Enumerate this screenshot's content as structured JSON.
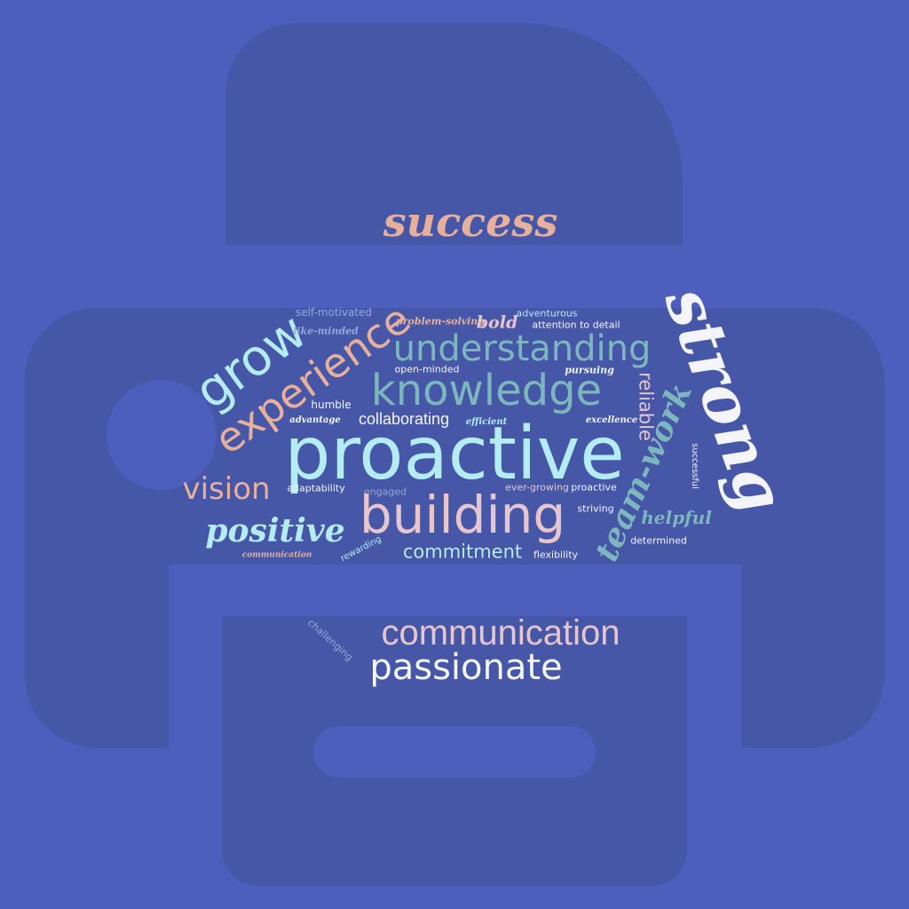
{
  "palette": {
    "background": "#4e5ebd",
    "printer": "#4657a8",
    "peach": "#e6b09c",
    "cyan": "#b3ecf3",
    "teal": "#7db7be",
    "pink": "#e6c5cd",
    "white": "#f3f5fb",
    "slate": "#94a9d6"
  },
  "icon": "printer-icon",
  "words": {
    "success": "success",
    "self_motivated": "self-motivated",
    "problem_solving": "problem-solving",
    "bold": "bold",
    "adventurous": "adventurous",
    "attention_to_detail": "attention to detail",
    "grow": "grow",
    "like_minded": "like-minded",
    "experience": "experience",
    "understanding": "understanding",
    "strong": "strong",
    "open_minded": "open-minded",
    "pursuing": "pursuing",
    "knowledge": "knowledge",
    "reliable": "reliable",
    "humble": "humble",
    "advantage": "advantage",
    "collaborating": "collaborating",
    "efficient": "efficient",
    "excellence": "excellence",
    "proactive_main": "proactive",
    "team_work": "team-work",
    "successful": "successful",
    "vision": "vision",
    "adaptability": "adaptability",
    "engaged": "engaged",
    "ever_growing": "ever-growing",
    "proactive_small": "proactive",
    "building": "building",
    "striving": "striving",
    "helpful": "helpful",
    "positive": "positive",
    "determined": "determined",
    "communication_small": "communication",
    "rewarding": "rewarding",
    "commitment": "commitment",
    "flexibility": "flexibility",
    "challenging": "challenging",
    "communication_large": "communication",
    "passionate": "passionate"
  }
}
